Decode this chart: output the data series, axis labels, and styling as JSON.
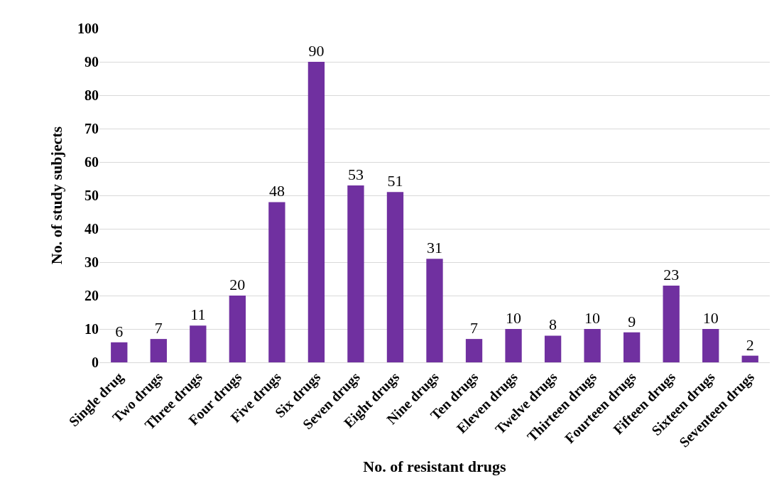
{
  "chart_data": {
    "type": "bar",
    "xlabel": "No. of resistant drugs",
    "ylabel": "No. of study subjects",
    "categories": [
      "Single drug",
      "Two drugs",
      "Three drugs",
      "Four drugs",
      "Five drugs",
      "Six drugs",
      "Seven drugs",
      "Eight drugs",
      "Nine drugs",
      "Ten drugs",
      "Eleven drugs",
      "Twelve drugs",
      "Thirteen drugs",
      "Fourteen drugs",
      "Fifteen drugs",
      "Sixteen drugs",
      "Seventeen drugs"
    ],
    "values": [
      6,
      7,
      11,
      20,
      48,
      90,
      53,
      51,
      31,
      7,
      10,
      8,
      10,
      9,
      23,
      10,
      2
    ],
    "color": "#7030a0",
    "ylim": [
      0,
      100
    ],
    "yticks": [
      0,
      10,
      20,
      30,
      40,
      50,
      60,
      70,
      80,
      90,
      100
    ],
    "grid": "y",
    "data_labels": true,
    "legend": false
  }
}
